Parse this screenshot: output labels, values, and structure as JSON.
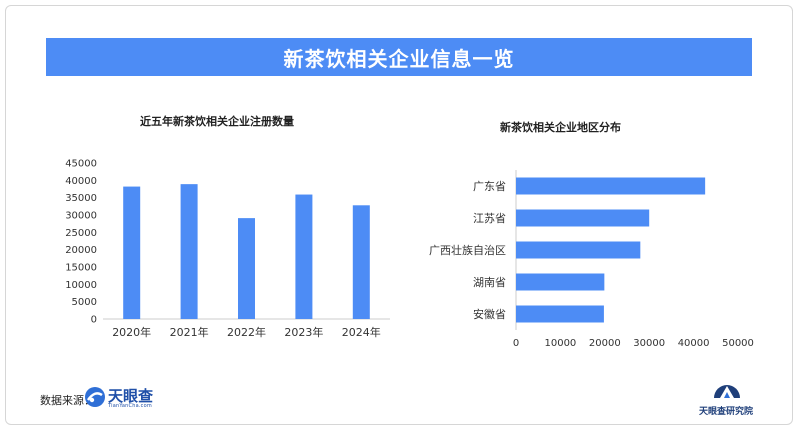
{
  "header": {
    "title": "新茶饮相关企业信息一览"
  },
  "colors": {
    "accent": "#4d8cf5",
    "bar": "#4d8cf5"
  },
  "footer": {
    "source_label": "数据来源：",
    "logo_left_text": "天眼查",
    "logo_left_subtext": "TianYanCha.com",
    "logo_right_text": "天眼查研究院"
  },
  "chart_data": [
    {
      "type": "bar",
      "title": "近五年新茶饮相关企业注册数量",
      "categories": [
        "2020年",
        "2021年",
        "2022年",
        "2023年",
        "2024年"
      ],
      "values": [
        38200,
        38900,
        29100,
        35900,
        32800
      ],
      "ylim": [
        0,
        45000
      ],
      "yticks": [
        0,
        5000,
        10000,
        15000,
        20000,
        25000,
        30000,
        35000,
        40000,
        45000
      ],
      "xlabel": "",
      "ylabel": "",
      "grid": false
    },
    {
      "type": "bar",
      "orientation": "horizontal",
      "title": "新茶饮相关企业地区分布",
      "categories": [
        "广东省",
        "江苏省",
        "广西壮族自治区",
        "湖南省",
        "安徽省"
      ],
      "values": [
        42600,
        30000,
        28000,
        19900,
        19800
      ],
      "xlim": [
        0,
        50000
      ],
      "xticks": [
        0,
        10000,
        20000,
        30000,
        40000,
        50000
      ],
      "xlabel": "",
      "ylabel": "",
      "grid": false
    }
  ]
}
